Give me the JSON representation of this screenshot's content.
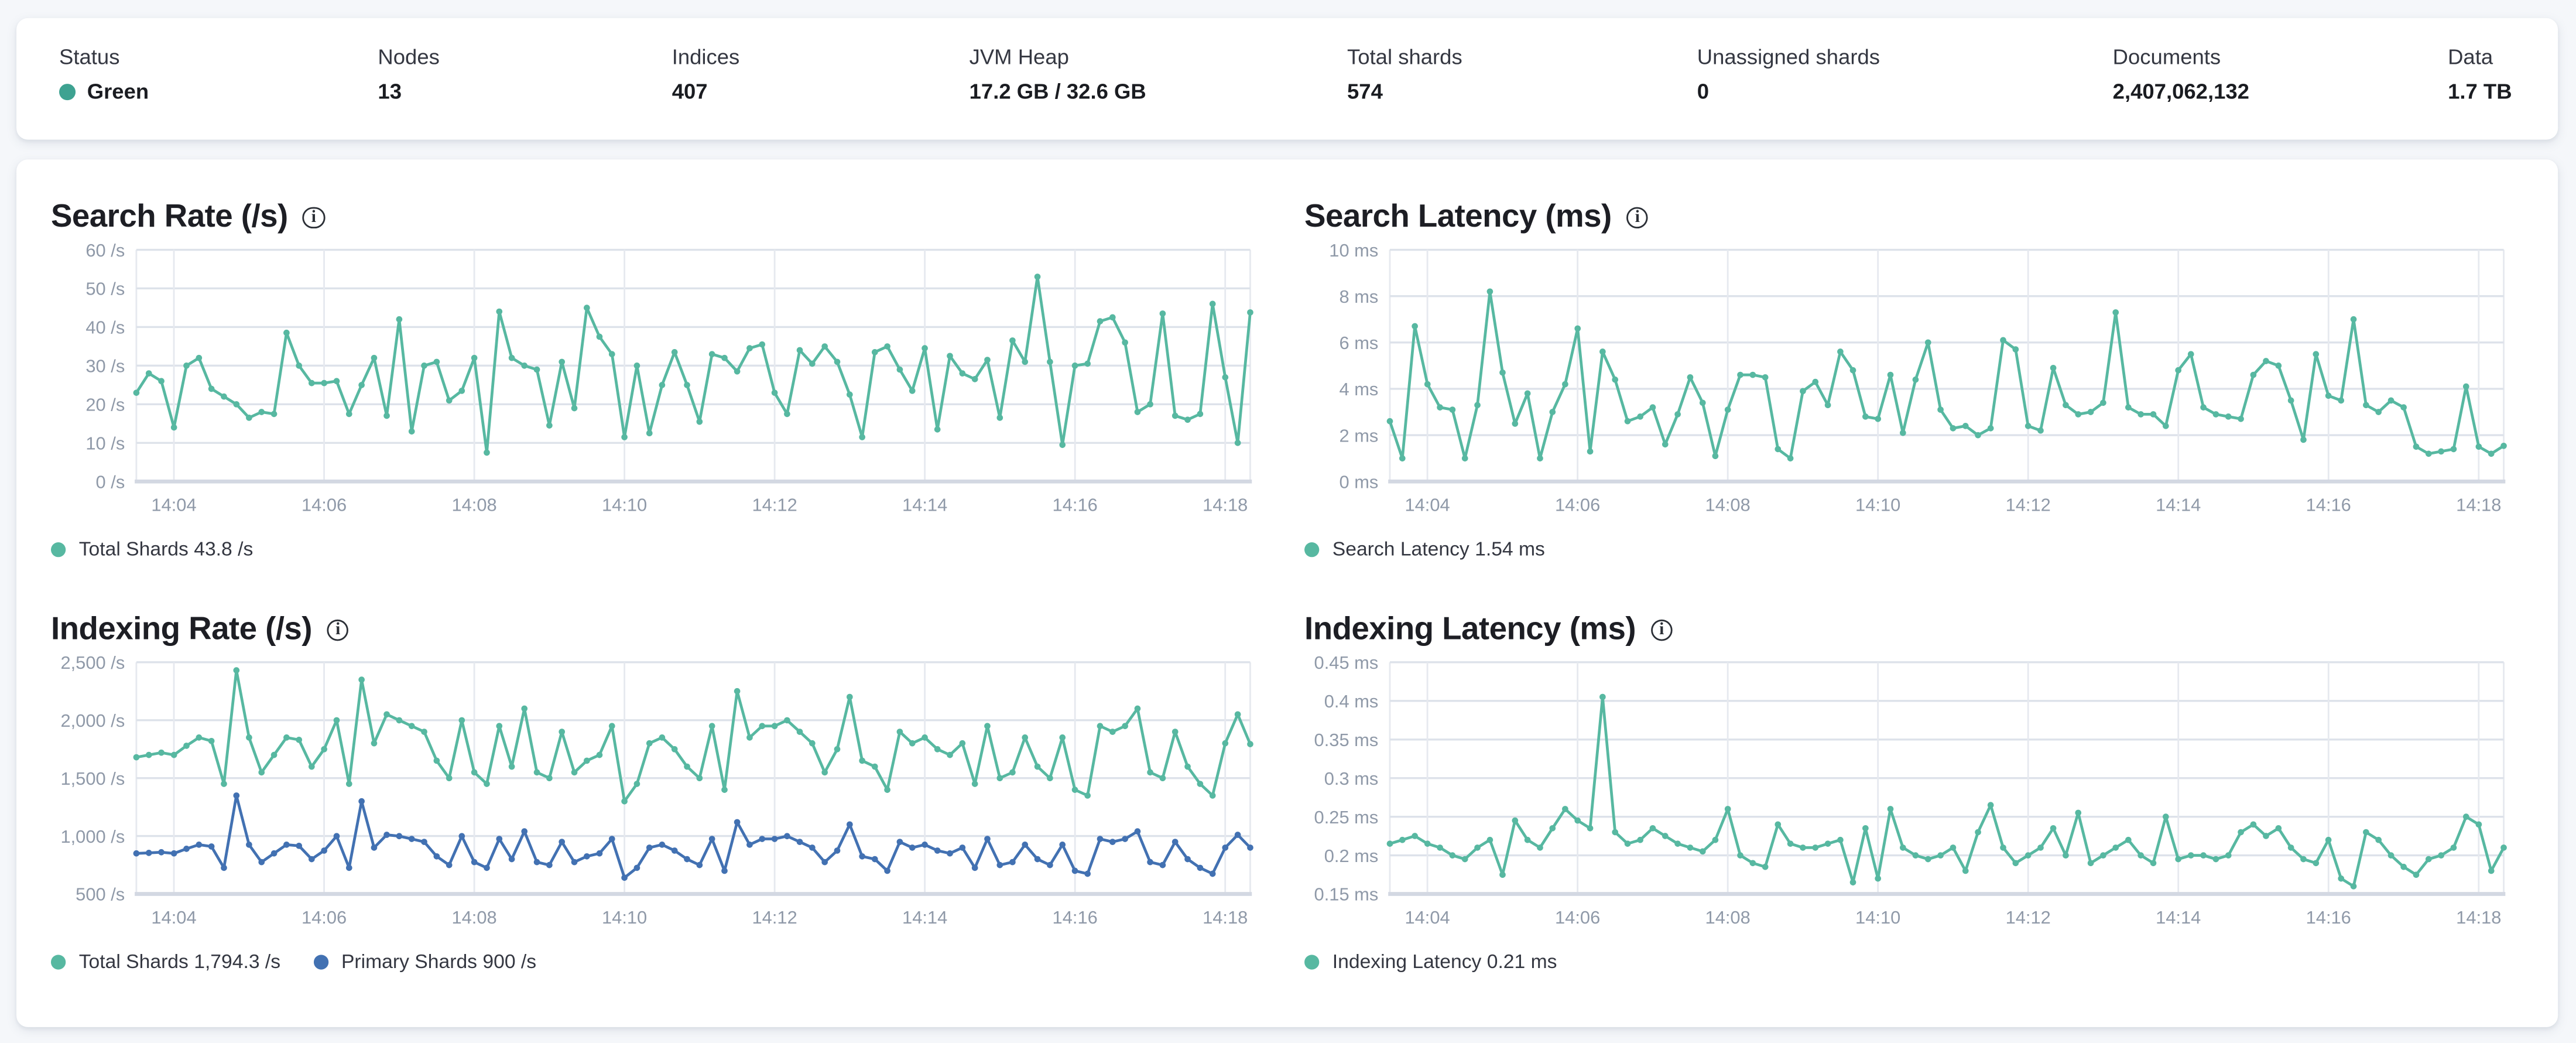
{
  "header": {
    "status_color": "#3EA291",
    "stats": [
      {
        "label": "Status",
        "value": "Green",
        "has_dot": true
      },
      {
        "label": "Nodes",
        "value": "13"
      },
      {
        "label": "Indices",
        "value": "407"
      },
      {
        "label": "JVM Heap",
        "value": "17.2 GB / 32.6 GB"
      },
      {
        "label": "Total shards",
        "value": "574"
      },
      {
        "label": "Unassigned shards",
        "value": "0"
      },
      {
        "label": "Documents",
        "value": "2,407,062,132"
      },
      {
        "label": "Data",
        "value": "1.7 TB"
      }
    ]
  },
  "icons": {
    "info": "info-circle-icon"
  },
  "chart_data": [
    {
      "type": "line",
      "title": "Search Rate (/s)",
      "xlabel": "",
      "ylabel": "",
      "grid": true,
      "legend_position": "bottom",
      "x_start": "14:03:30",
      "x_step_seconds": 10,
      "x_tick_labels": [
        "14:04",
        "14:06",
        "14:08",
        "14:10",
        "14:12",
        "14:14",
        "14:16",
        "14:18"
      ],
      "x_tick_indices": [
        3,
        15,
        27,
        39,
        51,
        63,
        75,
        87
      ],
      "ylim": [
        0,
        60
      ],
      "y_tick_values": [
        60,
        50,
        40,
        30,
        20,
        10,
        0
      ],
      "y_tick_labels": [
        "60 /s",
        "50 /s",
        "40 /s",
        "30 /s",
        "20 /s",
        "10 /s",
        "0 /s"
      ],
      "series": [
        {
          "name": "Total Shards",
          "legend_text": "Total Shards 43.8 /s",
          "color": "#57B8A1",
          "values": [
            23,
            28,
            26,
            14,
            30,
            32,
            24,
            22,
            20,
            16.5,
            18,
            17.5,
            38.5,
            30,
            25.5,
            25.5,
            26,
            17.5,
            25,
            32,
            17,
            42,
            13,
            30,
            31,
            21,
            23.5,
            32,
            7.5,
            44,
            32,
            30,
            29,
            14.5,
            31,
            19,
            45,
            37.5,
            33,
            11.5,
            30,
            12.5,
            25,
            33.5,
            25,
            15.5,
            33,
            32,
            28.5,
            34.5,
            35.5,
            23,
            17.5,
            34,
            30.5,
            35,
            31,
            22.5,
            11.5,
            33.5,
            35,
            29,
            23.5,
            34.5,
            13.5,
            32.5,
            28,
            26.5,
            31.5,
            16.5,
            36.5,
            31,
            53,
            31,
            9.5,
            30,
            30.5,
            41.5,
            42.5,
            36,
            18,
            20,
            43.5,
            17,
            16,
            17.5,
            46,
            27,
            10,
            43.8
          ]
        }
      ]
    },
    {
      "type": "line",
      "title": "Search Latency (ms)",
      "xlabel": "",
      "ylabel": "",
      "grid": true,
      "legend_position": "bottom",
      "x_start": "14:03:30",
      "x_step_seconds": 10,
      "x_tick_labels": [
        "14:04",
        "14:06",
        "14:08",
        "14:10",
        "14:12",
        "14:14",
        "14:16",
        "14:18"
      ],
      "x_tick_indices": [
        3,
        15,
        27,
        39,
        51,
        63,
        75,
        87
      ],
      "ylim": [
        0,
        10
      ],
      "y_tick_values": [
        10,
        8,
        6,
        4,
        2,
        0
      ],
      "y_tick_labels": [
        "10 ms",
        "8 ms",
        "6 ms",
        "4 ms",
        "2 ms",
        "0 ms"
      ],
      "series": [
        {
          "name": "Search Latency",
          "legend_text": "Search Latency 1.54 ms",
          "color": "#57B8A1",
          "values": [
            2.6,
            1.0,
            6.7,
            4.2,
            3.2,
            3.1,
            1.0,
            3.3,
            8.2,
            4.7,
            2.5,
            3.8,
            1.0,
            3.0,
            4.2,
            6.6,
            1.3,
            5.6,
            4.4,
            2.6,
            2.8,
            3.2,
            1.6,
            2.9,
            4.5,
            3.4,
            1.1,
            3.1,
            4.6,
            4.6,
            4.5,
            1.4,
            1.0,
            3.9,
            4.3,
            3.3,
            5.6,
            4.8,
            2.8,
            2.7,
            4.6,
            2.1,
            4.4,
            6.0,
            3.1,
            2.3,
            2.4,
            2.0,
            2.3,
            6.1,
            5.7,
            2.4,
            2.2,
            4.9,
            3.3,
            2.9,
            3.0,
            3.4,
            7.3,
            3.2,
            2.9,
            2.9,
            2.4,
            4.8,
            5.5,
            3.2,
            2.9,
            2.8,
            2.7,
            4.6,
            5.2,
            5.0,
            3.5,
            1.8,
            5.5,
            3.7,
            3.5,
            7.0,
            3.3,
            3.0,
            3.5,
            3.2,
            1.5,
            1.2,
            1.3,
            1.4,
            4.1,
            1.5,
            1.2,
            1.54
          ]
        }
      ]
    },
    {
      "type": "line",
      "title": "Indexing Rate (/s)",
      "xlabel": "",
      "ylabel": "",
      "grid": true,
      "legend_position": "bottom",
      "x_start": "14:03:30",
      "x_step_seconds": 10,
      "x_tick_labels": [
        "14:04",
        "14:06",
        "14:08",
        "14:10",
        "14:12",
        "14:14",
        "14:16",
        "14:18"
      ],
      "x_tick_indices": [
        3,
        15,
        27,
        39,
        51,
        63,
        75,
        87
      ],
      "ylim": [
        500,
        2500
      ],
      "y_tick_values": [
        2500,
        2000,
        1500,
        1000,
        500
      ],
      "y_tick_labels": [
        "2,500 /s",
        "2,000 /s",
        "1,500 /s",
        "1,000 /s",
        "500 /s"
      ],
      "series": [
        {
          "name": "Total Shards",
          "legend_text": "Total Shards 1,794.3 /s",
          "color": "#57B8A1",
          "values": [
            1680,
            1700,
            1720,
            1700,
            1780,
            1850,
            1820,
            1450,
            2430,
            1850,
            1550,
            1700,
            1850,
            1830,
            1600,
            1750,
            2000,
            1450,
            2350,
            1800,
            2050,
            2000,
            1950,
            1900,
            1650,
            1500,
            2000,
            1550,
            1450,
            1950,
            1600,
            2100,
            1550,
            1500,
            1900,
            1550,
            1650,
            1700,
            1950,
            1300,
            1450,
            1800,
            1850,
            1750,
            1600,
            1500,
            1950,
            1400,
            2250,
            1850,
            1950,
            1950,
            2000,
            1900,
            1800,
            1550,
            1750,
            2200,
            1650,
            1600,
            1400,
            1900,
            1800,
            1850,
            1750,
            1700,
            1800,
            1450,
            1950,
            1500,
            1550,
            1850,
            1600,
            1500,
            1850,
            1400,
            1350,
            1950,
            1900,
            1950,
            2100,
            1550,
            1500,
            1900,
            1600,
            1450,
            1350,
            1800,
            2050,
            1794.3
          ]
        },
        {
          "name": "Primary Shards",
          "legend_text": "Primary Shards 900 /s",
          "color": "#4271B2",
          "values": [
            850,
            855,
            860,
            850,
            890,
            925,
            910,
            725,
            1350,
            925,
            775,
            850,
            925,
            915,
            800,
            875,
            1000,
            725,
            1300,
            900,
            1010,
            1000,
            975,
            950,
            825,
            750,
            1000,
            775,
            725,
            975,
            800,
            1040,
            775,
            750,
            950,
            775,
            825,
            850,
            975,
            640,
            725,
            900,
            925,
            875,
            800,
            750,
            975,
            700,
            1120,
            925,
            975,
            975,
            1000,
            950,
            900,
            775,
            875,
            1100,
            825,
            800,
            700,
            950,
            900,
            925,
            875,
            850,
            900,
            725,
            975,
            750,
            775,
            925,
            800,
            750,
            925,
            700,
            675,
            975,
            950,
            975,
            1040,
            775,
            750,
            950,
            800,
            725,
            675,
            900,
            1010,
            900
          ]
        }
      ]
    },
    {
      "type": "line",
      "title": "Indexing Latency (ms)",
      "xlabel": "",
      "ylabel": "",
      "grid": true,
      "legend_position": "bottom",
      "x_start": "14:03:30",
      "x_step_seconds": 10,
      "x_tick_labels": [
        "14:04",
        "14:06",
        "14:08",
        "14:10",
        "14:12",
        "14:14",
        "14:16",
        "14:18"
      ],
      "x_tick_indices": [
        3,
        15,
        27,
        39,
        51,
        63,
        75,
        87
      ],
      "ylim": [
        0.15,
        0.45
      ],
      "y_tick_values": [
        0.45,
        0.4,
        0.35,
        0.3,
        0.25,
        0.2,
        0.15
      ],
      "y_tick_labels": [
        "0.45 ms",
        "0.4 ms",
        "0.35 ms",
        "0.3 ms",
        "0.25 ms",
        "0.2 ms",
        "0.15 ms"
      ],
      "series": [
        {
          "name": "Indexing Latency",
          "legend_text": "Indexing Latency 0.21 ms",
          "color": "#57B8A1",
          "values": [
            0.215,
            0.22,
            0.225,
            0.215,
            0.21,
            0.2,
            0.195,
            0.21,
            0.22,
            0.175,
            0.245,
            0.22,
            0.21,
            0.235,
            0.26,
            0.245,
            0.235,
            0.405,
            0.23,
            0.215,
            0.22,
            0.235,
            0.225,
            0.215,
            0.21,
            0.205,
            0.22,
            0.26,
            0.2,
            0.19,
            0.185,
            0.24,
            0.215,
            0.21,
            0.21,
            0.215,
            0.22,
            0.165,
            0.235,
            0.17,
            0.26,
            0.21,
            0.2,
            0.195,
            0.2,
            0.21,
            0.18,
            0.23,
            0.265,
            0.21,
            0.19,
            0.2,
            0.21,
            0.235,
            0.2,
            0.255,
            0.19,
            0.2,
            0.21,
            0.22,
            0.2,
            0.19,
            0.25,
            0.195,
            0.2,
            0.2,
            0.195,
            0.2,
            0.23,
            0.24,
            0.225,
            0.235,
            0.21,
            0.195,
            0.19,
            0.22,
            0.17,
            0.16,
            0.23,
            0.22,
            0.2,
            0.185,
            0.175,
            0.195,
            0.2,
            0.21,
            0.25,
            0.24,
            0.18,
            0.21
          ]
        }
      ]
    }
  ]
}
